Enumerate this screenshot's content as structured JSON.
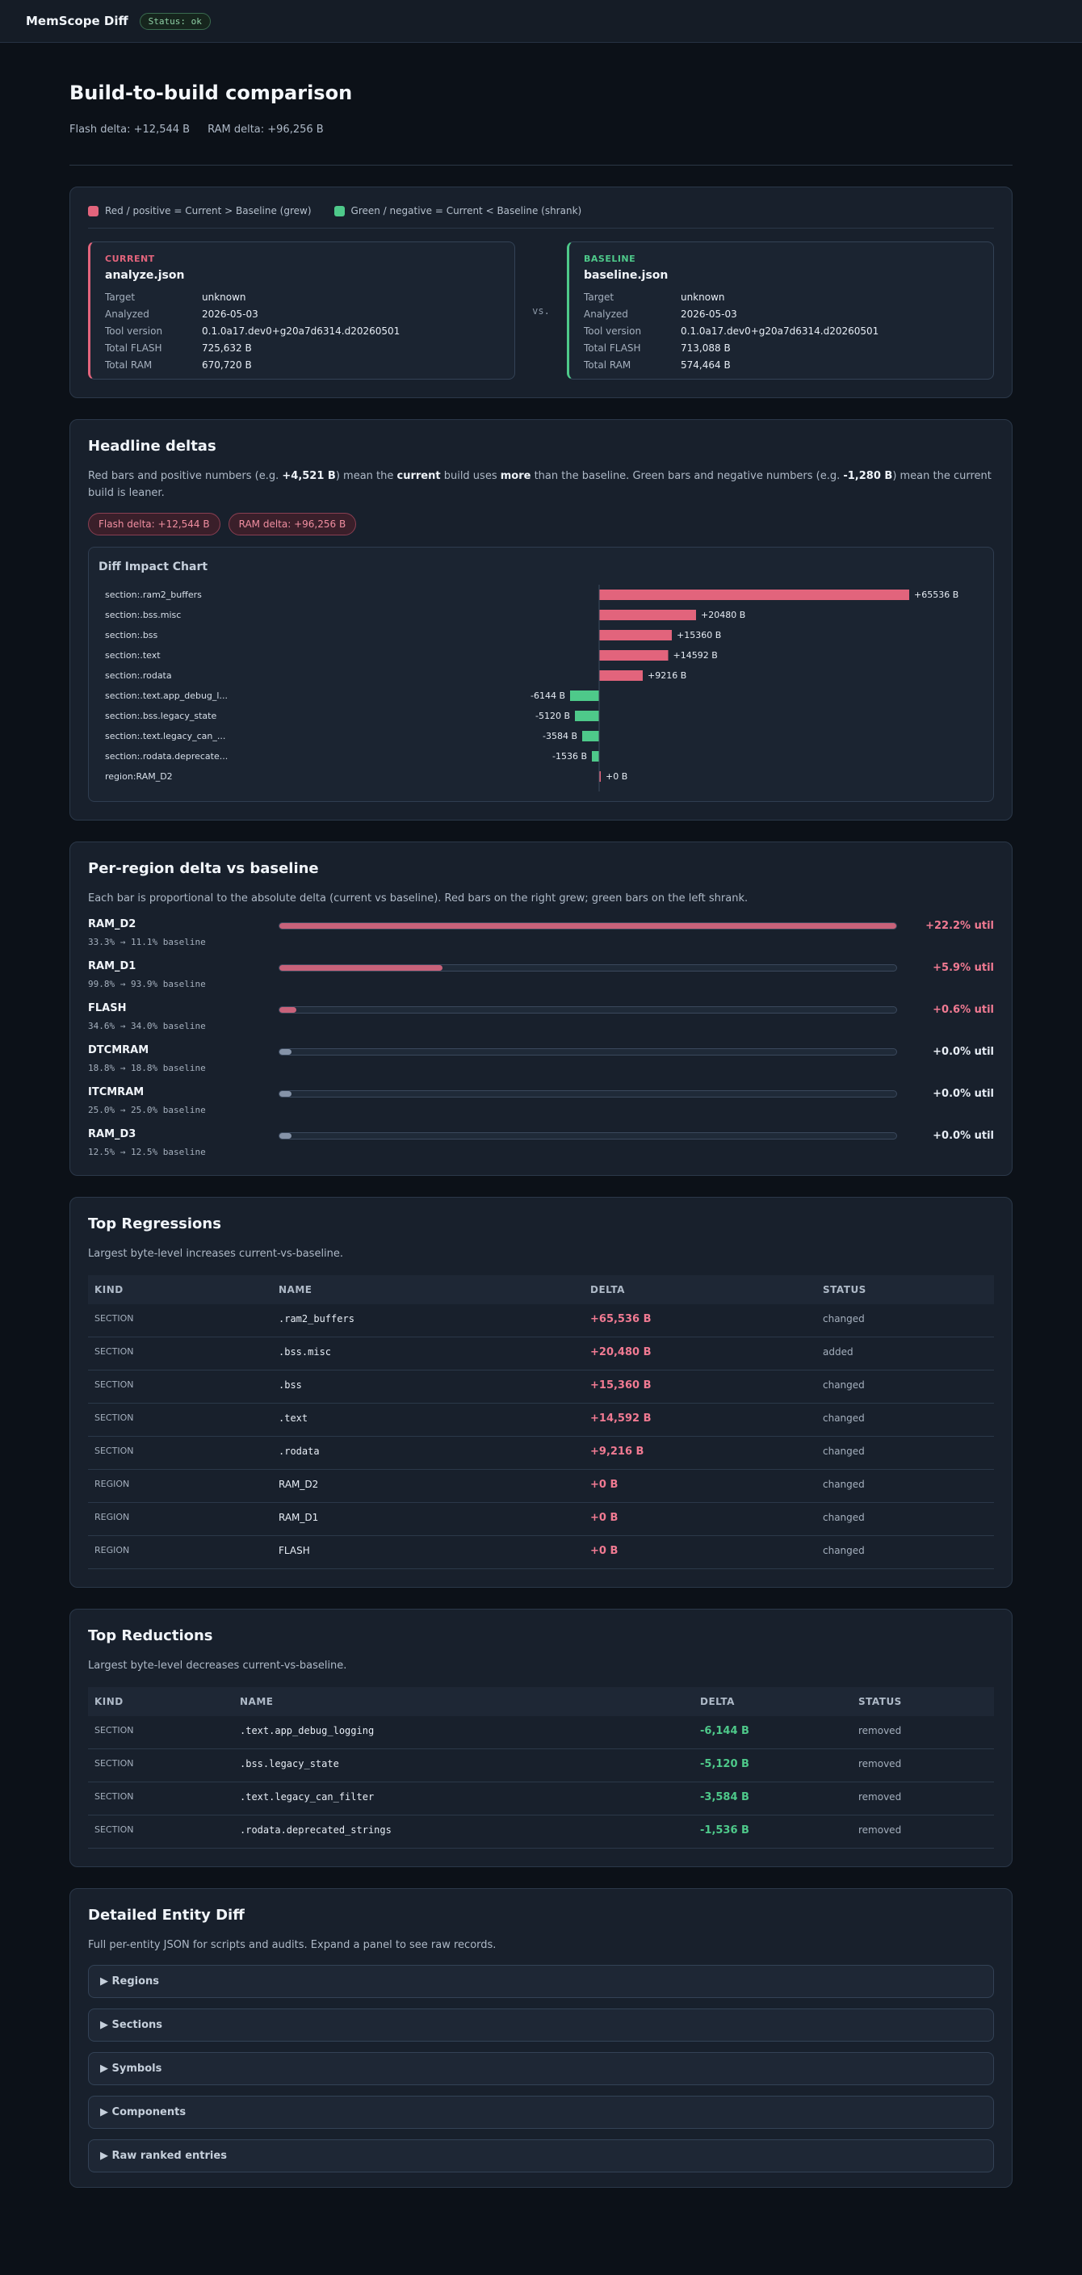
{
  "app": {
    "title": "MemScope Diff",
    "status": "Status: ok"
  },
  "hero": {
    "title": "Build-to-build comparison",
    "flash_delta": "Flash delta: +12,544 B",
    "ram_delta": "RAM delta: +96,256 B"
  },
  "legend": {
    "red": "Red / positive = Current > Baseline (grew)",
    "green": "Green / negative = Current < Baseline (shrank)"
  },
  "current": {
    "tag": "CURRENT",
    "file": "analyze.json",
    "rows": [
      {
        "k": "Target",
        "v": "unknown"
      },
      {
        "k": "Analyzed",
        "v": "2026-05-03"
      },
      {
        "k": "Tool version",
        "v": "0.1.0a17.dev0+g20a7d6314.d20260501"
      },
      {
        "k": "Total FLASH",
        "v": "725,632 B"
      },
      {
        "k": "Total RAM",
        "v": "670,720 B"
      }
    ]
  },
  "vs": "vs.",
  "baseline": {
    "tag": "BASELINE",
    "file": "baseline.json",
    "rows": [
      {
        "k": "Target",
        "v": "unknown"
      },
      {
        "k": "Analyzed",
        "v": "2026-05-03"
      },
      {
        "k": "Tool version",
        "v": "0.1.0a17.dev0+g20a7d6314.d20260501"
      },
      {
        "k": "Total FLASH",
        "v": "713,088 B"
      },
      {
        "k": "Total RAM",
        "v": "574,464 B"
      }
    ]
  },
  "headline": {
    "title": "Headline deltas",
    "desc_1": "Red bars and positive numbers (e.g. ",
    "desc_b1": "+4,521 B",
    "desc_2": ") mean the ",
    "desc_b2": "current",
    "desc_3": " build uses ",
    "desc_b3": "more",
    "desc_4": " than the baseline. Green bars and negative numbers (e.g. ",
    "desc_b4": "-1,280 B",
    "desc_5": ") mean the current build is leaner.",
    "chip_flash": "Flash delta: +12,544 B",
    "chip_ram": "RAM delta: +96,256 B"
  },
  "chart_data": {
    "type": "bar",
    "title": "Diff Impact Chart",
    "orientation": "horizontal",
    "categories": [
      "section:.ram2_buffers",
      "section:.bss.misc",
      "section:.bss",
      "section:.text",
      "section:.rodata",
      "section:.text.app_debug_l...",
      "section:.bss.legacy_state",
      "section:.text.legacy_can_...",
      "section:.rodata.deprecate...",
      "region:RAM_D2"
    ],
    "values": [
      65536,
      20480,
      15360,
      14592,
      9216,
      -6144,
      -5120,
      -3584,
      -1536,
      0
    ],
    "labels": [
      "+65536 B",
      "+20480 B",
      "+15360 B",
      "+14592 B",
      "+9216 B",
      "-6144 B",
      "-5120 B",
      "-3584 B",
      "-1536 B",
      "+0 B"
    ],
    "colors": {
      "positive": "#e2647c",
      "negative": "#4ec98a",
      "zero": "#e2647c"
    }
  },
  "regions": {
    "title": "Per-region delta vs baseline",
    "desc": "Each bar is proportional to the absolute delta (current vs baseline). Red bars on the right grew; green bars on the left shrank.",
    "items": [
      {
        "name": "RAM_D2",
        "sub": "33.3% → 11.1% baseline",
        "delta": "+22.2% util",
        "fraction": 1.0,
        "kind": "red"
      },
      {
        "name": "RAM_D1",
        "sub": "99.8% → 93.9% baseline",
        "delta": "+5.9% util",
        "fraction": 0.265,
        "kind": "red"
      },
      {
        "name": "FLASH",
        "sub": "34.6% → 34.0% baseline",
        "delta": "+0.6% util",
        "fraction": 0.027,
        "kind": "red"
      },
      {
        "name": "DTCMRAM",
        "sub": "18.8% → 18.8% baseline",
        "delta": "+0.0% util",
        "fraction": 0.02,
        "kind": "neutral"
      },
      {
        "name": "ITCMRAM",
        "sub": "25.0% → 25.0% baseline",
        "delta": "+0.0% util",
        "fraction": 0.02,
        "kind": "neutral"
      },
      {
        "name": "RAM_D3",
        "sub": "12.5% → 12.5% baseline",
        "delta": "+0.0% util",
        "fraction": 0.02,
        "kind": "neutral"
      }
    ]
  },
  "regressions": {
    "title": "Top Regressions",
    "desc": "Largest byte-level increases current-vs-baseline.",
    "headers": [
      "KIND",
      "NAME",
      "DELTA",
      "STATUS"
    ],
    "rows": [
      {
        "kind": "SECTION",
        "name": ".ram2_buffers",
        "delta": "+65,536 B",
        "status": "changed",
        "mono": true
      },
      {
        "kind": "SECTION",
        "name": ".bss.misc",
        "delta": "+20,480 B",
        "status": "added",
        "mono": true
      },
      {
        "kind": "SECTION",
        "name": ".bss",
        "delta": "+15,360 B",
        "status": "changed",
        "mono": true
      },
      {
        "kind": "SECTION",
        "name": ".text",
        "delta": "+14,592 B",
        "status": "changed",
        "mono": true
      },
      {
        "kind": "SECTION",
        "name": ".rodata",
        "delta": "+9,216 B",
        "status": "changed",
        "mono": true
      },
      {
        "kind": "REGION",
        "name": "RAM_D2",
        "delta": "+0 B",
        "status": "changed",
        "mono": false
      },
      {
        "kind": "REGION",
        "name": "RAM_D1",
        "delta": "+0 B",
        "status": "changed",
        "mono": false
      },
      {
        "kind": "REGION",
        "name": "FLASH",
        "delta": "+0 B",
        "status": "changed",
        "mono": false
      }
    ]
  },
  "reductions": {
    "title": "Top Reductions",
    "desc": "Largest byte-level decreases current-vs-baseline.",
    "headers": [
      "KIND",
      "NAME",
      "DELTA",
      "STATUS"
    ],
    "rows": [
      {
        "kind": "SECTION",
        "name": ".text.app_debug_logging",
        "delta": "-6,144 B",
        "status": "removed"
      },
      {
        "kind": "SECTION",
        "name": ".bss.legacy_state",
        "delta": "-5,120 B",
        "status": "removed"
      },
      {
        "kind": "SECTION",
        "name": ".text.legacy_can_filter",
        "delta": "-3,584 B",
        "status": "removed"
      },
      {
        "kind": "SECTION",
        "name": ".rodata.deprecated_strings",
        "delta": "-1,536 B",
        "status": "removed"
      }
    ]
  },
  "entity": {
    "title": "Detailed Entity Diff",
    "desc": "Full per-entity JSON for scripts and audits. Expand a panel to see raw records.",
    "panels": [
      "▶  Regions",
      "▶  Sections",
      "▶  Symbols",
      "▶  Components",
      "▶  Raw ranked entries"
    ]
  }
}
